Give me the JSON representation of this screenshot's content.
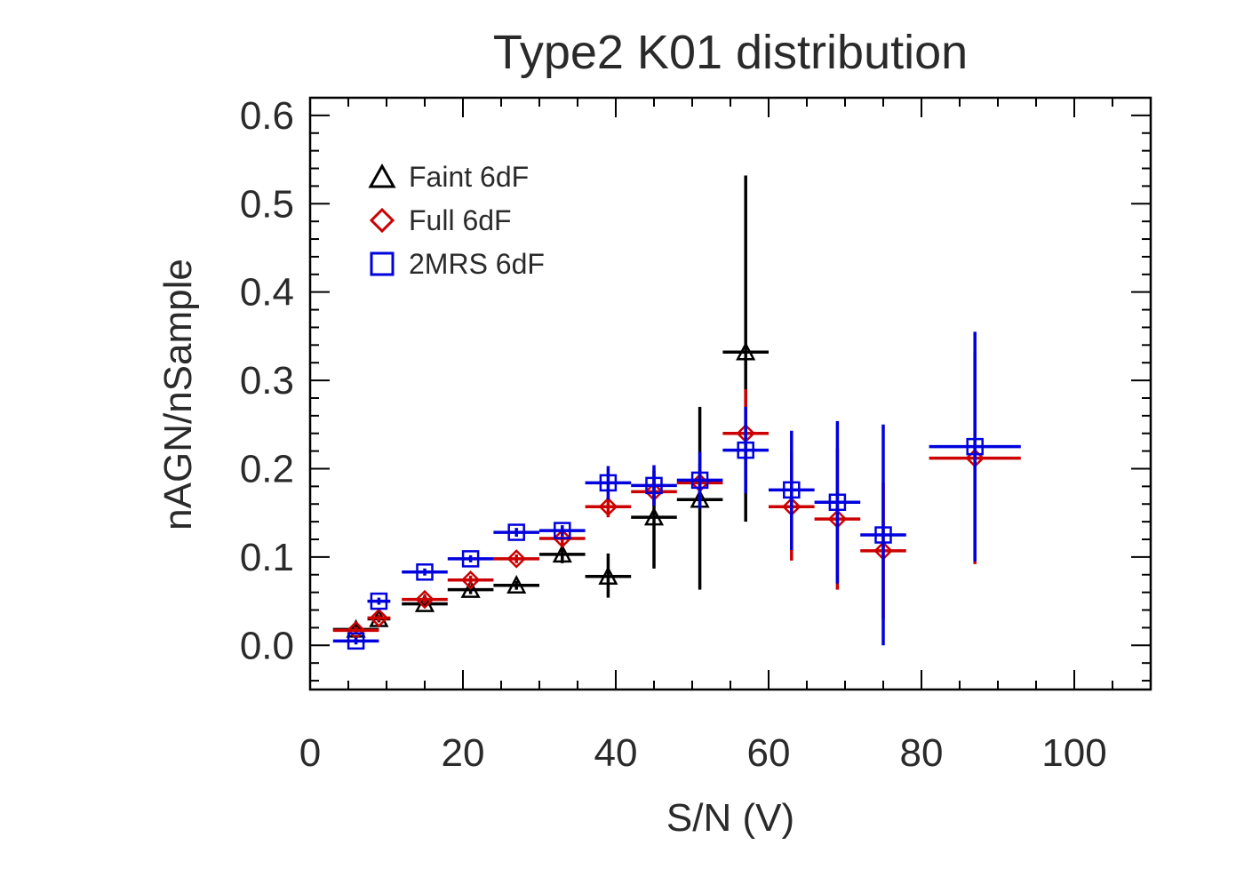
{
  "chart_data": {
    "type": "scatter",
    "title": "Type2 K01 distribution",
    "xlabel": "S/N (V)",
    "ylabel": "nAGN/nSample",
    "xlim": [
      0,
      110
    ],
    "ylim": [
      -0.05,
      0.62
    ],
    "x_ticks": [
      0,
      20,
      40,
      60,
      80,
      100
    ],
    "x_tick_labels": [
      "0",
      "20",
      "40",
      "60",
      "80",
      "100"
    ],
    "y_ticks": [
      0.0,
      0.1,
      0.2,
      0.3,
      0.4,
      0.5,
      0.6
    ],
    "y_tick_labels": [
      "0.0",
      "0.1",
      "0.2",
      "0.3",
      "0.4",
      "0.5",
      "0.6"
    ],
    "legend_position": "top-left",
    "series": [
      {
        "name": "Faint 6dF",
        "marker": "triangle",
        "color": "#000000",
        "points": [
          {
            "x": 6,
            "y": 0.018,
            "xlo": 3,
            "xhi": 9,
            "ylo": 0.012,
            "yhi": 0.024
          },
          {
            "x": 9,
            "y": 0.03,
            "xlo": 7.5,
            "xhi": 10.5,
            "ylo": 0.026,
            "yhi": 0.034
          },
          {
            "x": 15,
            "y": 0.047,
            "xlo": 12,
            "xhi": 18,
            "ylo": 0.043,
            "yhi": 0.051
          },
          {
            "x": 21,
            "y": 0.063,
            "xlo": 18,
            "xhi": 24,
            "ylo": 0.058,
            "yhi": 0.068
          },
          {
            "x": 27,
            "y": 0.068,
            "xlo": 24,
            "xhi": 30,
            "ylo": 0.063,
            "yhi": 0.073
          },
          {
            "x": 33,
            "y": 0.103,
            "xlo": 30,
            "xhi": 36,
            "ylo": 0.093,
            "yhi": 0.113
          },
          {
            "x": 39,
            "y": 0.078,
            "xlo": 36,
            "xhi": 42,
            "ylo": 0.054,
            "yhi": 0.104
          },
          {
            "x": 45,
            "y": 0.145,
            "xlo": 42,
            "xhi": 48,
            "ylo": 0.087,
            "yhi": 0.198
          },
          {
            "x": 51,
            "y": 0.165,
            "xlo": 48,
            "xhi": 54,
            "ylo": 0.063,
            "yhi": 0.27
          },
          {
            "x": 57,
            "y": 0.332,
            "xlo": 54,
            "xhi": 60,
            "ylo": 0.14,
            "yhi": 0.532
          }
        ]
      },
      {
        "name": "Full 6dF",
        "marker": "diamond",
        "color": "#cc0000",
        "points": [
          {
            "x": 6,
            "y": 0.017,
            "xlo": 3,
            "xhi": 9,
            "ylo": 0.013,
            "yhi": 0.021
          },
          {
            "x": 9,
            "y": 0.031,
            "xlo": 7.5,
            "xhi": 10.5,
            "ylo": 0.027,
            "yhi": 0.035
          },
          {
            "x": 15,
            "y": 0.052,
            "xlo": 12,
            "xhi": 18,
            "ylo": 0.047,
            "yhi": 0.057
          },
          {
            "x": 21,
            "y": 0.074,
            "xlo": 18,
            "xhi": 24,
            "ylo": 0.069,
            "yhi": 0.079
          },
          {
            "x": 27,
            "y": 0.098,
            "xlo": 24,
            "xhi": 30,
            "ylo": 0.093,
            "yhi": 0.103
          },
          {
            "x": 33,
            "y": 0.121,
            "xlo": 30,
            "xhi": 36,
            "ylo": 0.114,
            "yhi": 0.128
          },
          {
            "x": 39,
            "y": 0.157,
            "xlo": 36,
            "xhi": 42,
            "ylo": 0.145,
            "yhi": 0.169
          },
          {
            "x": 45,
            "y": 0.174,
            "xlo": 42,
            "xhi": 48,
            "ylo": 0.158,
            "yhi": 0.19
          },
          {
            "x": 51,
            "y": 0.184,
            "xlo": 48,
            "xhi": 54,
            "ylo": 0.162,
            "yhi": 0.206
          },
          {
            "x": 57,
            "y": 0.24,
            "xlo": 54,
            "xhi": 60,
            "ylo": 0.19,
            "yhi": 0.29
          },
          {
            "x": 63,
            "y": 0.157,
            "xlo": 60,
            "xhi": 66,
            "ylo": 0.096,
            "yhi": 0.218
          },
          {
            "x": 69,
            "y": 0.143,
            "xlo": 66,
            "xhi": 72,
            "ylo": 0.063,
            "yhi": 0.223
          },
          {
            "x": 75,
            "y": 0.107,
            "xlo": 72,
            "xhi": 78,
            "ylo": 0.03,
            "yhi": 0.184
          },
          {
            "x": 87,
            "y": 0.212,
            "xlo": 81,
            "xhi": 93,
            "ylo": 0.092,
            "yhi": 0.332
          }
        ]
      },
      {
        "name": "2MRS 6dF",
        "marker": "square",
        "color": "#0000dd",
        "points": [
          {
            "x": 6,
            "y": 0.005,
            "xlo": 3,
            "xhi": 9,
            "ylo": 0.001,
            "yhi": 0.009
          },
          {
            "x": 9,
            "y": 0.05,
            "xlo": 7.5,
            "xhi": 10.5,
            "ylo": 0.046,
            "yhi": 0.054
          },
          {
            "x": 15,
            "y": 0.083,
            "xlo": 12,
            "xhi": 18,
            "ylo": 0.079,
            "yhi": 0.087
          },
          {
            "x": 21,
            "y": 0.098,
            "xlo": 18,
            "xhi": 24,
            "ylo": 0.094,
            "yhi": 0.102
          },
          {
            "x": 27,
            "y": 0.128,
            "xlo": 24,
            "xhi": 30,
            "ylo": 0.123,
            "yhi": 0.133
          },
          {
            "x": 33,
            "y": 0.13,
            "xlo": 30,
            "xhi": 36,
            "ylo": 0.124,
            "yhi": 0.136
          },
          {
            "x": 39,
            "y": 0.184,
            "xlo": 36,
            "xhi": 42,
            "ylo": 0.165,
            "yhi": 0.203
          },
          {
            "x": 45,
            "y": 0.181,
            "xlo": 42,
            "xhi": 48,
            "ylo": 0.158,
            "yhi": 0.204
          },
          {
            "x": 51,
            "y": 0.187,
            "xlo": 48,
            "xhi": 54,
            "ylo": 0.155,
            "yhi": 0.219
          },
          {
            "x": 57,
            "y": 0.221,
            "xlo": 54,
            "xhi": 60,
            "ylo": 0.172,
            "yhi": 0.27
          },
          {
            "x": 63,
            "y": 0.176,
            "xlo": 60,
            "xhi": 66,
            "ylo": 0.108,
            "yhi": 0.243
          },
          {
            "x": 69,
            "y": 0.162,
            "xlo": 66,
            "xhi": 72,
            "ylo": 0.07,
            "yhi": 0.254
          },
          {
            "x": 75,
            "y": 0.125,
            "xlo": 72,
            "xhi": 78,
            "ylo": 0.0,
            "yhi": 0.25
          },
          {
            "x": 87,
            "y": 0.225,
            "xlo": 81,
            "xhi": 93,
            "ylo": 0.095,
            "yhi": 0.355
          }
        ]
      }
    ]
  }
}
